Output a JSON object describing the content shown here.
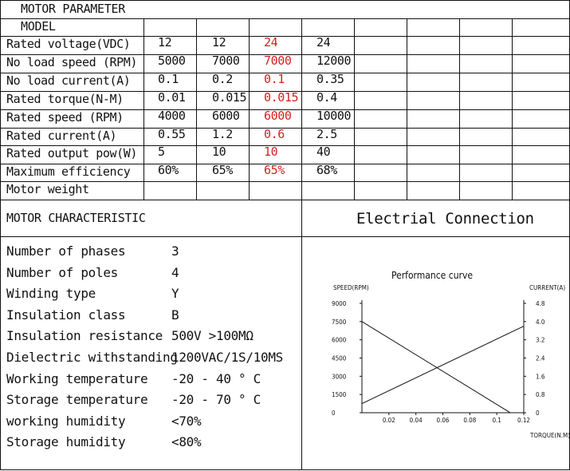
{
  "header": {
    "title": "MOTOR PARAMETER",
    "model_label": "MODEL"
  },
  "params": {
    "rows": [
      {
        "label": "Rated voltage(VDC)",
        "values": [
          "12",
          "12",
          "24",
          "24"
        ]
      },
      {
        "label": "No load speed (RPM)",
        "values": [
          "5000",
          "7000",
          "7000",
          "12000"
        ]
      },
      {
        "label": "No load current(A)",
        "values": [
          "0.1",
          "0.2",
          "0.1",
          "0.35"
        ]
      },
      {
        "label": "Rated torque(N-M)",
        "values": [
          "0.01",
          "0.015",
          "0.015",
          "0.4"
        ]
      },
      {
        "label": "Rated speed (RPM)",
        "values": [
          "4000",
          "6000",
          "6000",
          "10000"
        ]
      },
      {
        "label": "Rated current(A)",
        "values": [
          "0.55",
          "1.2",
          "0.6",
          "2.5"
        ]
      },
      {
        "label": "Rated output pow(W)",
        "values": [
          "5",
          "10",
          "10",
          "40"
        ]
      },
      {
        "label": "Maximum efficiency",
        "values": [
          "60%",
          "65%",
          "65%",
          "68%"
        ]
      },
      {
        "label": "Motor weight",
        "values": [
          "",
          "",
          "",
          ""
        ]
      }
    ],
    "highlight_column": 2,
    "highlight_color": "#d42020"
  },
  "characteristic": {
    "title": "MOTOR CHARACTERISTIC",
    "items": [
      {
        "label": "Number of phases",
        "value": "3"
      },
      {
        "label": "Number of poles",
        "value": "4"
      },
      {
        "label": "Winding type",
        "value": "Y"
      },
      {
        "label": "Insulation class",
        "value": "B"
      },
      {
        "label": "Insulation resistance",
        "value": "500V  >100MΩ"
      },
      {
        "label": "Dielectric withstanding",
        "value": "1200VAC/1S/10MS"
      },
      {
        "label": "Working temperature",
        "value": "-20 - 40  ° C"
      },
      {
        "label": "Storage temperature",
        "value": "-20 - 70  ° C"
      },
      {
        "label": "working humidity",
        "value": "<70%"
      },
      {
        "label": "Storage humidity",
        "value": "<80%"
      }
    ]
  },
  "connection": {
    "title": "Electrial Connection"
  },
  "chart_data": {
    "type": "line",
    "title": "Performance curve",
    "xlabel": "TORQUE(N.M)",
    "ylabel": "SPEED(RPM)",
    "y2label": "CURRENT(A)",
    "x_ticks": [
      "0.02",
      "0.04",
      "0.06",
      "0.08",
      "0.1",
      "0.12"
    ],
    "y_ticks": [
      "0",
      "1500",
      "3000",
      "4500",
      "6000",
      "7500",
      "9000"
    ],
    "y2_ticks": [
      "0",
      "0.8",
      "1.6",
      "2.4",
      "3.2",
      "4.0",
      "4.8"
    ],
    "xlim": [
      0,
      0.12
    ],
    "ylim": [
      0,
      9000
    ],
    "y2lim": [
      0,
      4.8
    ],
    "grid": false,
    "series": [
      {
        "axis": "left",
        "x": [
          0,
          0.11
        ],
        "y": [
          7500,
          0
        ]
      },
      {
        "axis": "right",
        "x": [
          0,
          0.12
        ],
        "y": [
          0.4,
          3.8
        ]
      }
    ]
  }
}
